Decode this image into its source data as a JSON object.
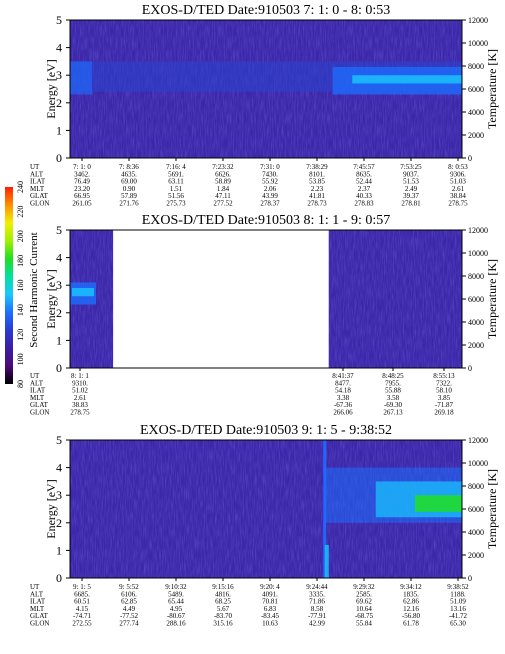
{
  "colorbar": {
    "label": "Second Harmonic Current",
    "ticks": [
      "80",
      "100",
      "120",
      "140",
      "160",
      "180",
      "200",
      "220",
      "240"
    ],
    "colors": [
      "#000000",
      "#4b0a7a",
      "#3a1fa0",
      "#2a3ad4",
      "#1e6eff",
      "#18c8ff",
      "#00e0a0",
      "#20e020",
      "#a0f000",
      "#f0f000",
      "#ff9000",
      "#ff2000"
    ]
  },
  "chart_data": [
    {
      "type": "heatmap",
      "title": "EXOS-D/TED   Date:910503  7: 1: 0 - 8: 0:53",
      "ylabel": "Energy [eV]",
      "y2label": "Temperature [K]",
      "ylim": [
        0,
        5
      ],
      "y2lim": [
        0,
        12000
      ],
      "yticks": [
        "0",
        "1",
        "2",
        "3",
        "4",
        "5"
      ],
      "y2ticks": [
        "0",
        "2000",
        "4000",
        "6000",
        "8000",
        "10000",
        "12000"
      ],
      "gaps": [],
      "table": {
        "row_labels": [
          "UT",
          "ALT",
          "ILAT",
          "MLT",
          "GLAT",
          "GLON"
        ],
        "columns": [
          [
            "7: 1: 0",
            "3462.",
            "76.49",
            "23.20",
            "66.95",
            "261.05"
          ],
          [
            "7: 8:36",
            "4635.",
            "69.00",
            "0.90",
            "57.89",
            "271.76"
          ],
          [
            "7:16: 4",
            "5691.",
            "63.11",
            "1.51",
            "51.56",
            "275.73"
          ],
          [
            "7:23:32",
            "6626.",
            "58.89",
            "1.84",
            "47.11",
            "277.52"
          ],
          [
            "7:31: 0",
            "7430.",
            "55.92",
            "2.06",
            "43.99",
            "278.37"
          ],
          [
            "7:38:29",
            "8101.",
            "53.85",
            "2.23",
            "41.81",
            "278.73"
          ],
          [
            "7:45:57",
            "8635.",
            "52.44",
            "2.37",
            "40.33",
            "278.83"
          ],
          [
            "7:53:25",
            "9037.",
            "51.53",
            "2.49",
            "39.37",
            "278.81"
          ],
          [
            "8: 0:53",
            "9306.",
            "51.03",
            "2.61",
            "38.84",
            "278.75"
          ]
        ]
      }
    },
    {
      "type": "heatmap",
      "title": "EXOS-D/TED   Date:910503  8: 1: 1 - 9: 0:57",
      "ylabel": "Energy [eV]",
      "y2label": "Temperature [K]",
      "ylim": [
        0,
        5
      ],
      "y2lim": [
        0,
        12000
      ],
      "yticks": [
        "0",
        "1",
        "2",
        "3",
        "4",
        "5"
      ],
      "y2ticks": [
        "0",
        "2000",
        "4000",
        "6000",
        "8000",
        "10000",
        "12000"
      ],
      "gaps": [
        [
          0.11,
          0.66
        ]
      ],
      "table": {
        "row_labels": [
          "UT",
          "ALT",
          "ILAT",
          "MLT",
          "GLAT",
          "GLON"
        ],
        "columns": [
          [
            "8: 1: 1",
            "9310.",
            "51.02",
            "2.61",
            "38.83",
            "278.75"
          ],
          [
            "8:41:37",
            "8477.",
            "54.18",
            "3.38",
            "-67.36",
            "266.06"
          ],
          [
            "8:48:25",
            "7955.",
            "55.88",
            "3.58",
            "-69.30",
            "267.13"
          ],
          [
            "8:55:13",
            "7322.",
            "58.10",
            "3.85",
            "-71.87",
            "269.18"
          ]
        ]
      }
    },
    {
      "type": "heatmap",
      "title": "EXOS-D/TED   Date:910503  9: 1: 5 - 9:38:52",
      "ylabel": "Energy [eV]",
      "y2label": "Temperature [K]",
      "ylim": [
        0,
        5
      ],
      "y2lim": [
        0,
        12000
      ],
      "yticks": [
        "0",
        "1",
        "2",
        "3",
        "4",
        "5"
      ],
      "y2ticks": [
        "0",
        "2000",
        "4000",
        "6000",
        "8000",
        "10000",
        "12000"
      ],
      "gaps": [],
      "table": {
        "row_labels": [
          "UT",
          "ALT",
          "ILAT",
          "MLT",
          "GLAT",
          "GLON"
        ],
        "columns": [
          [
            "9: 1: 5",
            "6685.",
            "60.51",
            "4.15",
            "-74.71",
            "272.55"
          ],
          [
            "9: 5:52",
            "6106.",
            "62.85",
            "4.49",
            "-77.52",
            "277.74"
          ],
          [
            "9:10:32",
            "5489.",
            "65.44",
            "4.95",
            "-80.67",
            "288.16"
          ],
          [
            "9:15:16",
            "4816.",
            "68.25",
            "5.67",
            "-83.70",
            "315.16"
          ],
          [
            "9:20: 4",
            "4091.",
            "70.81",
            "6.83",
            "-83.45",
            "10.63"
          ],
          [
            "9:24:44",
            "3335.",
            "71.86",
            "8.58",
            "-77.91",
            "42.99"
          ],
          [
            "9:29:32",
            "2585.",
            "69.62",
            "10.64",
            "-68.75",
            "55.84"
          ],
          [
            "9:34:12",
            "1835.",
            "62.86",
            "12.16",
            "-56.80",
            "61.78"
          ],
          [
            "9:38:52",
            "1188.",
            "51.09",
            "13.16",
            "-41.72",
            "65.30"
          ]
        ]
      }
    }
  ]
}
